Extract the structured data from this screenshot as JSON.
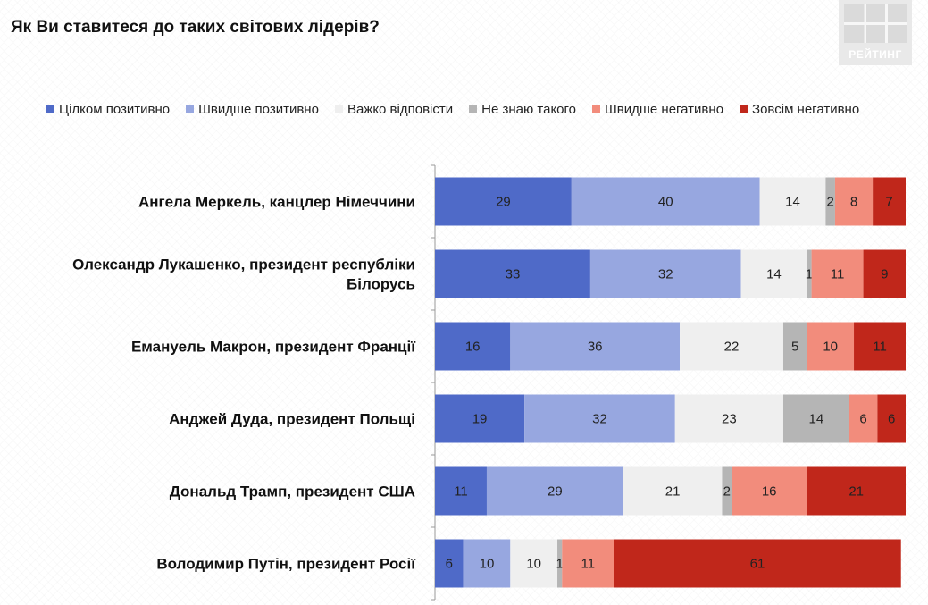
{
  "title": "Як Ви ставитеся до таких світових лідерів?",
  "logo_text": "РЕЙТИНГ",
  "chart_data": {
    "type": "bar",
    "stacked": true,
    "orientation": "horizontal",
    "title": "Як Ви ставитеся до таких світових лідерів?",
    "legend_position": "top",
    "xlim": [
      0,
      100
    ],
    "categories": [
      "Ангела Меркель, канцлер Німеччини",
      "Олександр Лукашенко, президент республіки Білорусь",
      "Емануель Макрон, президент Франції",
      "Анджей Дуда, президент Польщі",
      "Дональд Трамп, президент США",
      "Володимир Путін, президент Росії"
    ],
    "category_lines": [
      [
        "Ангела Меркель, канцлер Німеччини"
      ],
      [
        "Олександр Лукашенко, президент республіки",
        "Білорусь"
      ],
      [
        "Емануель Макрон, президент Франції"
      ],
      [
        "Анджей Дуда, президент Польщі"
      ],
      [
        "Дональд Трамп, президент США"
      ],
      [
        "Володимир Путін, президент Росії"
      ]
    ],
    "series": [
      {
        "name": "Цілком позитивно",
        "color": "#4f6ac8",
        "values": [
          29,
          33,
          16,
          19,
          11,
          6
        ]
      },
      {
        "name": "Швидше позитивно",
        "color": "#97a7e0",
        "values": [
          40,
          32,
          36,
          32,
          29,
          10
        ]
      },
      {
        "name": "Важко відповісти",
        "color": "#efefef",
        "values": [
          14,
          14,
          22,
          23,
          21,
          10
        ]
      },
      {
        "name": "Не знаю такого",
        "color": "#b5b5b5",
        "values": [
          2,
          1,
          5,
          14,
          2,
          1
        ]
      },
      {
        "name": "Швидше негативно",
        "color": "#f28c7c",
        "values": [
          8,
          11,
          10,
          6,
          16,
          11
        ]
      },
      {
        "name": "Зовсім негативно",
        "color": "#c0271b",
        "values": [
          7,
          9,
          11,
          6,
          21,
          61
        ]
      }
    ]
  }
}
